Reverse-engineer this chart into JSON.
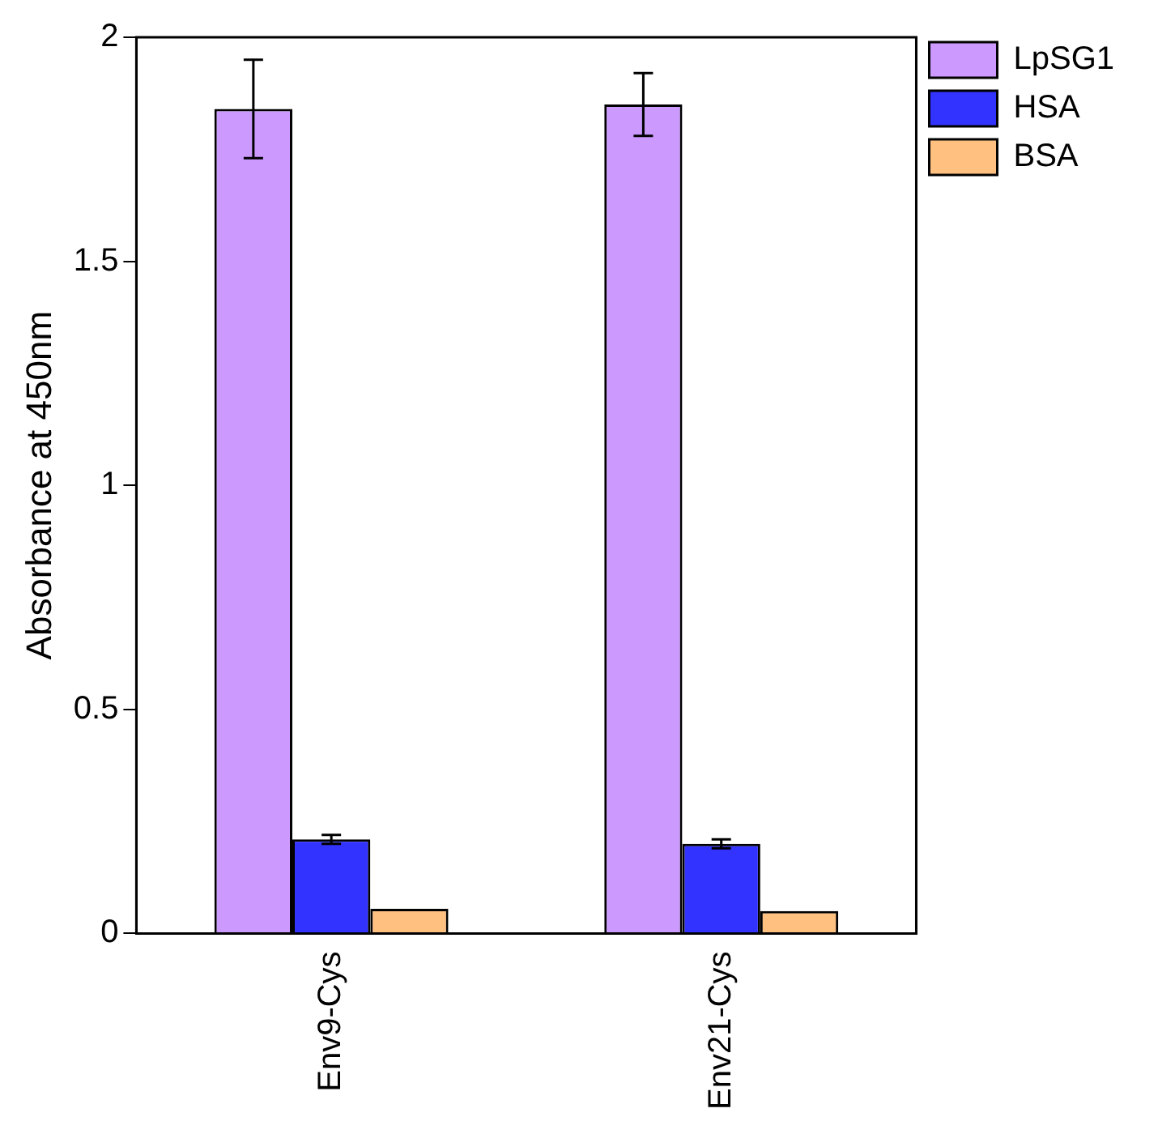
{
  "chart_data": {
    "type": "bar",
    "ylabel": "Absorbance at 450nm",
    "categories": [
      "Env9-Cys",
      "Env21-Cys"
    ],
    "series": [
      {
        "name": "LpSG1",
        "color": "#cc99ff",
        "values": [
          1.84,
          1.85
        ],
        "errors": [
          0.11,
          0.07
        ]
      },
      {
        "name": "HSA",
        "color": "#3333ff",
        "values": [
          0.21,
          0.2
        ],
        "errors": [
          0.01,
          0.01
        ]
      },
      {
        "name": "BSA",
        "color": "#ffc080",
        "values": [
          0.055,
          0.05
        ]
      }
    ],
    "ylim": [
      0,
      2
    ],
    "yticks": [
      0,
      0.5,
      1,
      1.5,
      2
    ],
    "grid": false,
    "legend": "top right"
  }
}
